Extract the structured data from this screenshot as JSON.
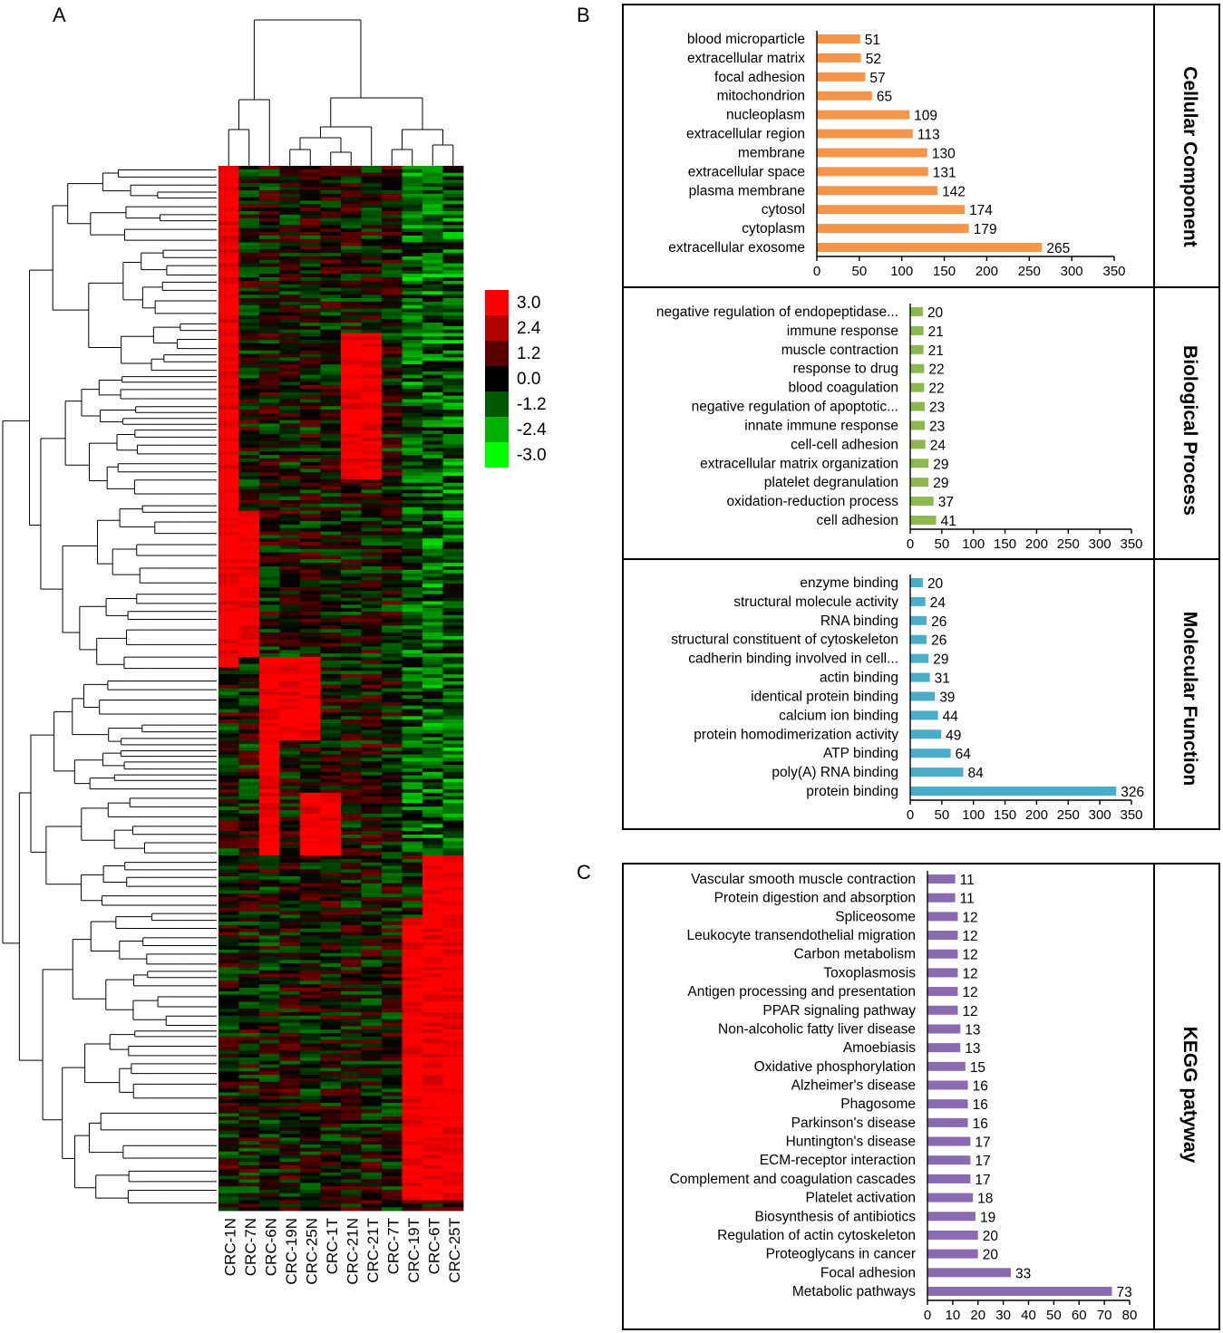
{
  "panel_labels": {
    "a": "A",
    "b": "B",
    "c": "C"
  },
  "chart_data": [
    {
      "type": "heatmap",
      "panel": "A",
      "columns": [
        "CRC-1N",
        "CRC-7N",
        "CRC-6N",
        "CRC-19N",
        "CRC-25N",
        "CRC-1T",
        "CRC-21N",
        "CRC-21T",
        "CRC-7T",
        "CRC-19T",
        "CRC-6T",
        "CRC-25T"
      ],
      "color_scale": {
        "labels": [
          "3.0",
          "2.4",
          "1.2",
          "0.0",
          "-1.2",
          "-2.4",
          "-3.0"
        ],
        "values": [
          3.0,
          2.4,
          1.2,
          0.0,
          -1.2,
          -2.4,
          -3.0
        ],
        "colors": [
          "#ff0000",
          "#b30000",
          "#5a0000",
          "#000000",
          "#005a00",
          "#00b300",
          "#00ff00"
        ]
      }
    },
    {
      "type": "bar",
      "orientation": "horizontal",
      "panel": "B",
      "side_label": "Cellular Component",
      "color": "#f5954a",
      "xlim": [
        0,
        350
      ],
      "xticks": [
        0,
        50,
        100,
        150,
        200,
        250,
        300,
        350
      ],
      "categories": [
        "blood microparticle",
        "extracellular matrix",
        "focal adhesion",
        "mitochondrion",
        "nucleoplasm",
        "extracellular region",
        "membrane",
        "extracellular space",
        "plasma membrane",
        "cytosol",
        "cytoplasm",
        "extracellular exosome"
      ],
      "values": [
        51,
        52,
        57,
        65,
        109,
        113,
        130,
        131,
        142,
        174,
        179,
        265
      ]
    },
    {
      "type": "bar",
      "orientation": "horizontal",
      "panel": "B",
      "side_label": "Biological Process",
      "color": "#8cb84f",
      "xlim": [
        0,
        350
      ],
      "xticks": [
        0,
        50,
        100,
        150,
        200,
        250,
        300,
        350
      ],
      "categories": [
        "negative regulation of endopeptidase...",
        "immune response",
        "muscle contraction",
        "response to drug",
        "blood coagulation",
        "negative regulation of apoptotic...",
        "innate immune response",
        "cell-cell adhesion",
        "extracellular matrix organization",
        "platelet degranulation",
        "oxidation-reduction process",
        "cell adhesion"
      ],
      "values": [
        20,
        21,
        21,
        22,
        22,
        23,
        23,
        24,
        29,
        29,
        37,
        41
      ]
    },
    {
      "type": "bar",
      "orientation": "horizontal",
      "panel": "B",
      "side_label": "Molecular Function",
      "color": "#4aaecb",
      "xlim": [
        0,
        350
      ],
      "xticks": [
        0,
        50,
        100,
        150,
        200,
        250,
        300,
        350
      ],
      "categories": [
        "enzyme binding",
        "structural molecule activity",
        "RNA binding",
        "structural constituent of cytoskeleton",
        "cadherin binding involved in cell...",
        "actin binding",
        "identical protein binding",
        "calcium ion binding",
        "protein homodimerization activity",
        "ATP binding",
        "poly(A) RNA binding",
        "protein binding"
      ],
      "values": [
        20,
        24,
        26,
        26,
        29,
        31,
        39,
        44,
        49,
        64,
        84,
        326
      ]
    },
    {
      "type": "bar",
      "orientation": "horizontal",
      "panel": "C",
      "side_label": "KEGG patyway",
      "color": "#8a6ab0",
      "xlim": [
        0,
        80
      ],
      "xticks": [
        0,
        10,
        20,
        30,
        40,
        50,
        60,
        70,
        80
      ],
      "categories": [
        "Vascular smooth muscle contraction",
        "Protein digestion and absorption",
        "Spliceosome",
        "Leukocyte transendothelial migration",
        "Carbon metabolism",
        "Toxoplasmosis",
        "Antigen processing and presentation",
        "PPAR signaling pathway",
        "Non-alcoholic fatty liver disease",
        "Amoebiasis",
        "Oxidative phosphorylation",
        "Alzheimer's disease",
        "Phagosome",
        "Parkinson's disease",
        "Huntington's disease",
        "ECM-receptor interaction",
        "Complement and coagulation cascades",
        "Platelet activation",
        "Biosynthesis of antibiotics",
        "Regulation of actin cytoskeleton",
        "Proteoglycans in cancer",
        "Focal adhesion",
        "Metabolic pathways"
      ],
      "values": [
        11,
        11,
        12,
        12,
        12,
        12,
        12,
        12,
        13,
        13,
        15,
        16,
        16,
        16,
        17,
        17,
        17,
        18,
        19,
        20,
        20,
        33,
        73
      ]
    }
  ]
}
